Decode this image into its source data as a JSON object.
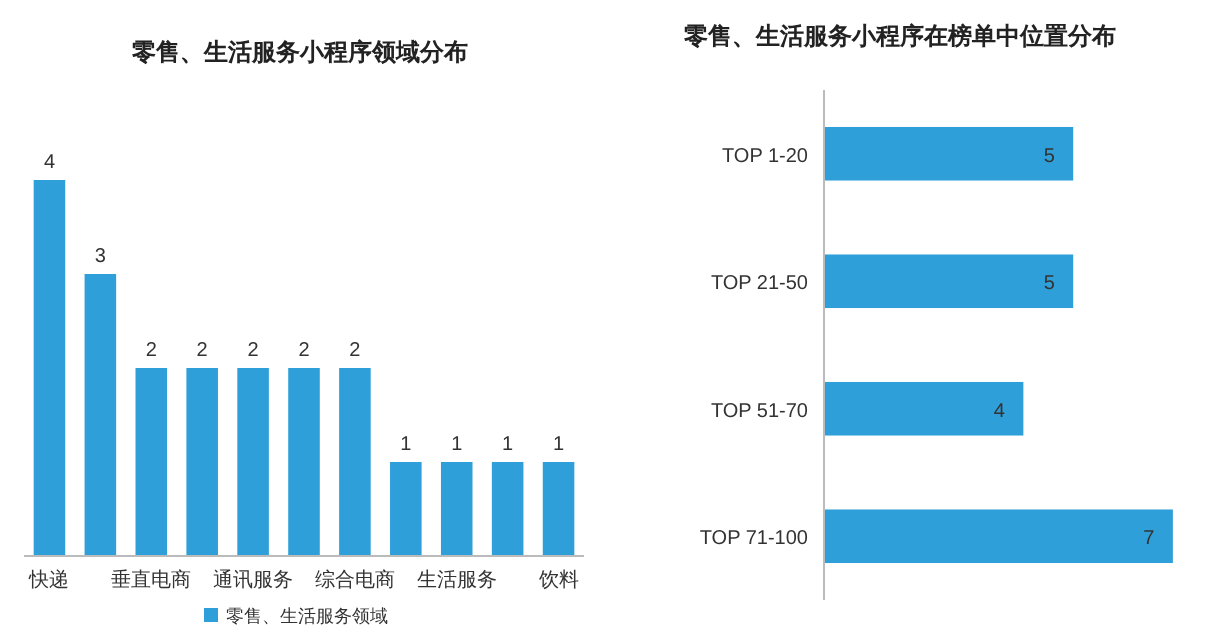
{
  "chart_data": [
    {
      "type": "bar",
      "title": "零售、生活服务小程序领域分布",
      "categories": [
        "快递",
        null,
        "垂直电商",
        null,
        "通讯服务",
        null,
        "综合电商",
        null,
        "生活服务",
        null,
        "饮料"
      ],
      "series": [
        {
          "name": "零售、生活服务领域",
          "color": "#2e9fd8",
          "values": [
            4,
            3,
            2,
            2,
            2,
            2,
            2,
            1,
            1,
            1,
            1
          ]
        }
      ],
      "data_labels": true,
      "legend": "bottom"
    },
    {
      "type": "bar",
      "orientation": "horizontal",
      "title": "零售、生活服务小程序在榜单中位置分布",
      "categories": [
        "TOP 1-20",
        "TOP 21-50",
        "TOP 51-70",
        "TOP 71-100"
      ],
      "series": [
        {
          "color": "#2e9fd8",
          "values": [
            5,
            5,
            4,
            7
          ]
        }
      ],
      "data_labels": true
    }
  ]
}
